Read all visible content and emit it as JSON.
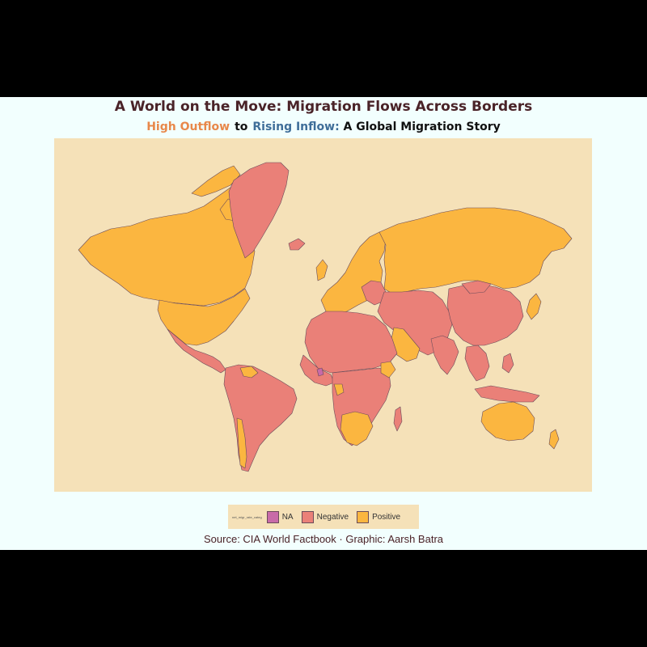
{
  "title": "A World on the Move: Migration Flows Across Borders",
  "subtitle": {
    "outflow": "High Outflow",
    "connector": "to",
    "inflow": "Rising Inflow:",
    "rest": "A Global Migration Story"
  },
  "legend": {
    "title": "net_migr_rate_categ",
    "items": [
      {
        "label": "NA",
        "color": "#C86AA8"
      },
      {
        "label": "Negative",
        "color": "#EA8078"
      },
      {
        "label": "Positive",
        "color": "#FBB640"
      }
    ]
  },
  "source": "Source: CIA World Factbook · Graphic: Aarsh Batra",
  "colors": {
    "background": "#F2FFFE",
    "ocean": "#F5E1B8",
    "positive": "#FBB640",
    "negative": "#EA8078",
    "na": "#C86AA8",
    "border": "#6a4b5a"
  }
}
